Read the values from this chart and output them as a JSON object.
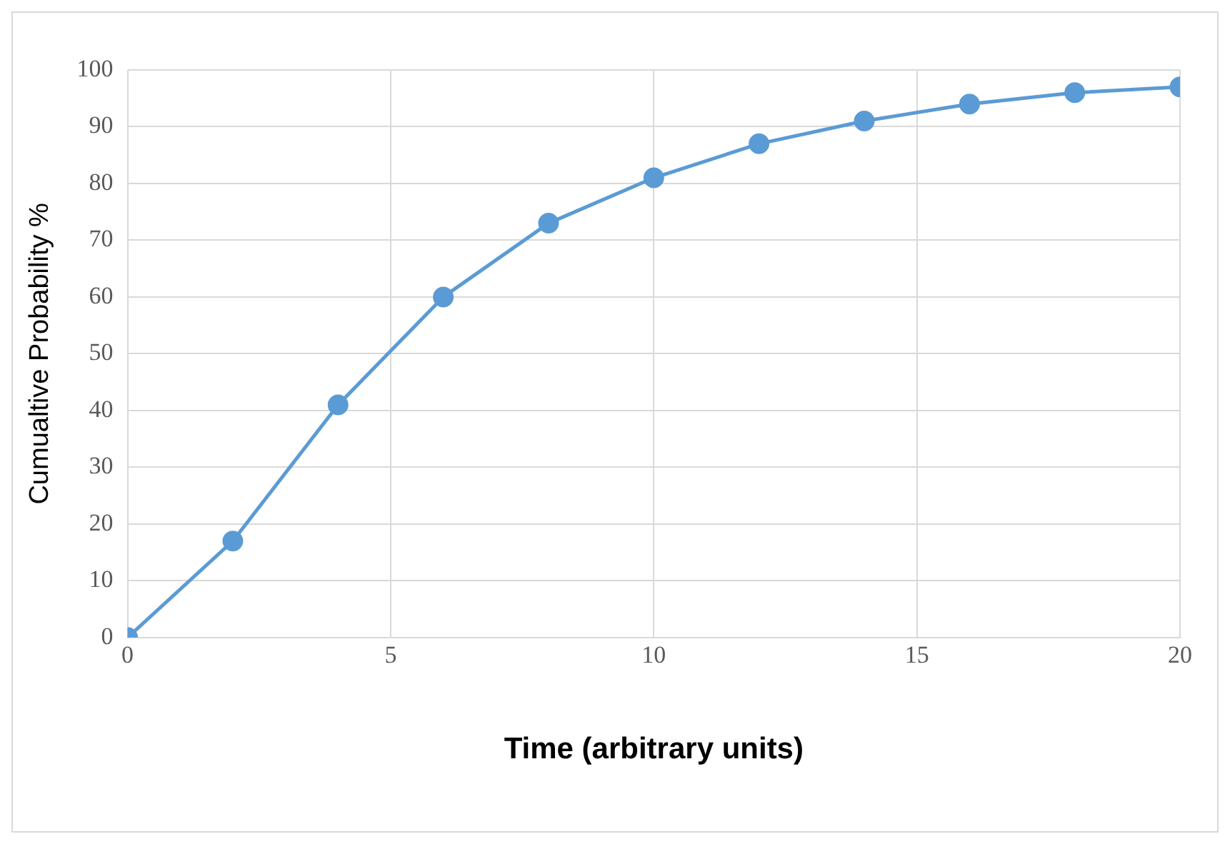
{
  "chart_data": {
    "type": "line",
    "xlabel": "Time (arbitrary units)",
    "ylabel": "Cumualtive Probability %",
    "x": [
      0,
      2,
      4,
      6,
      8,
      10,
      12,
      14,
      16,
      18,
      20
    ],
    "series": [
      {
        "color": "#5b9bd5",
        "values": [
          0,
          17,
          41,
          60,
          73,
          81,
          87,
          91,
          94,
          96,
          97
        ]
      }
    ],
    "xlim": [
      0,
      20
    ],
    "xticks": [
      0,
      5,
      10,
      15,
      20
    ],
    "ylim": [
      0,
      100
    ],
    "yticks": [
      0,
      10,
      20,
      30,
      40,
      50,
      60,
      70,
      80,
      90,
      100
    ],
    "grid": true,
    "legend": false,
    "marker": "circle",
    "line_style": "solid"
  }
}
